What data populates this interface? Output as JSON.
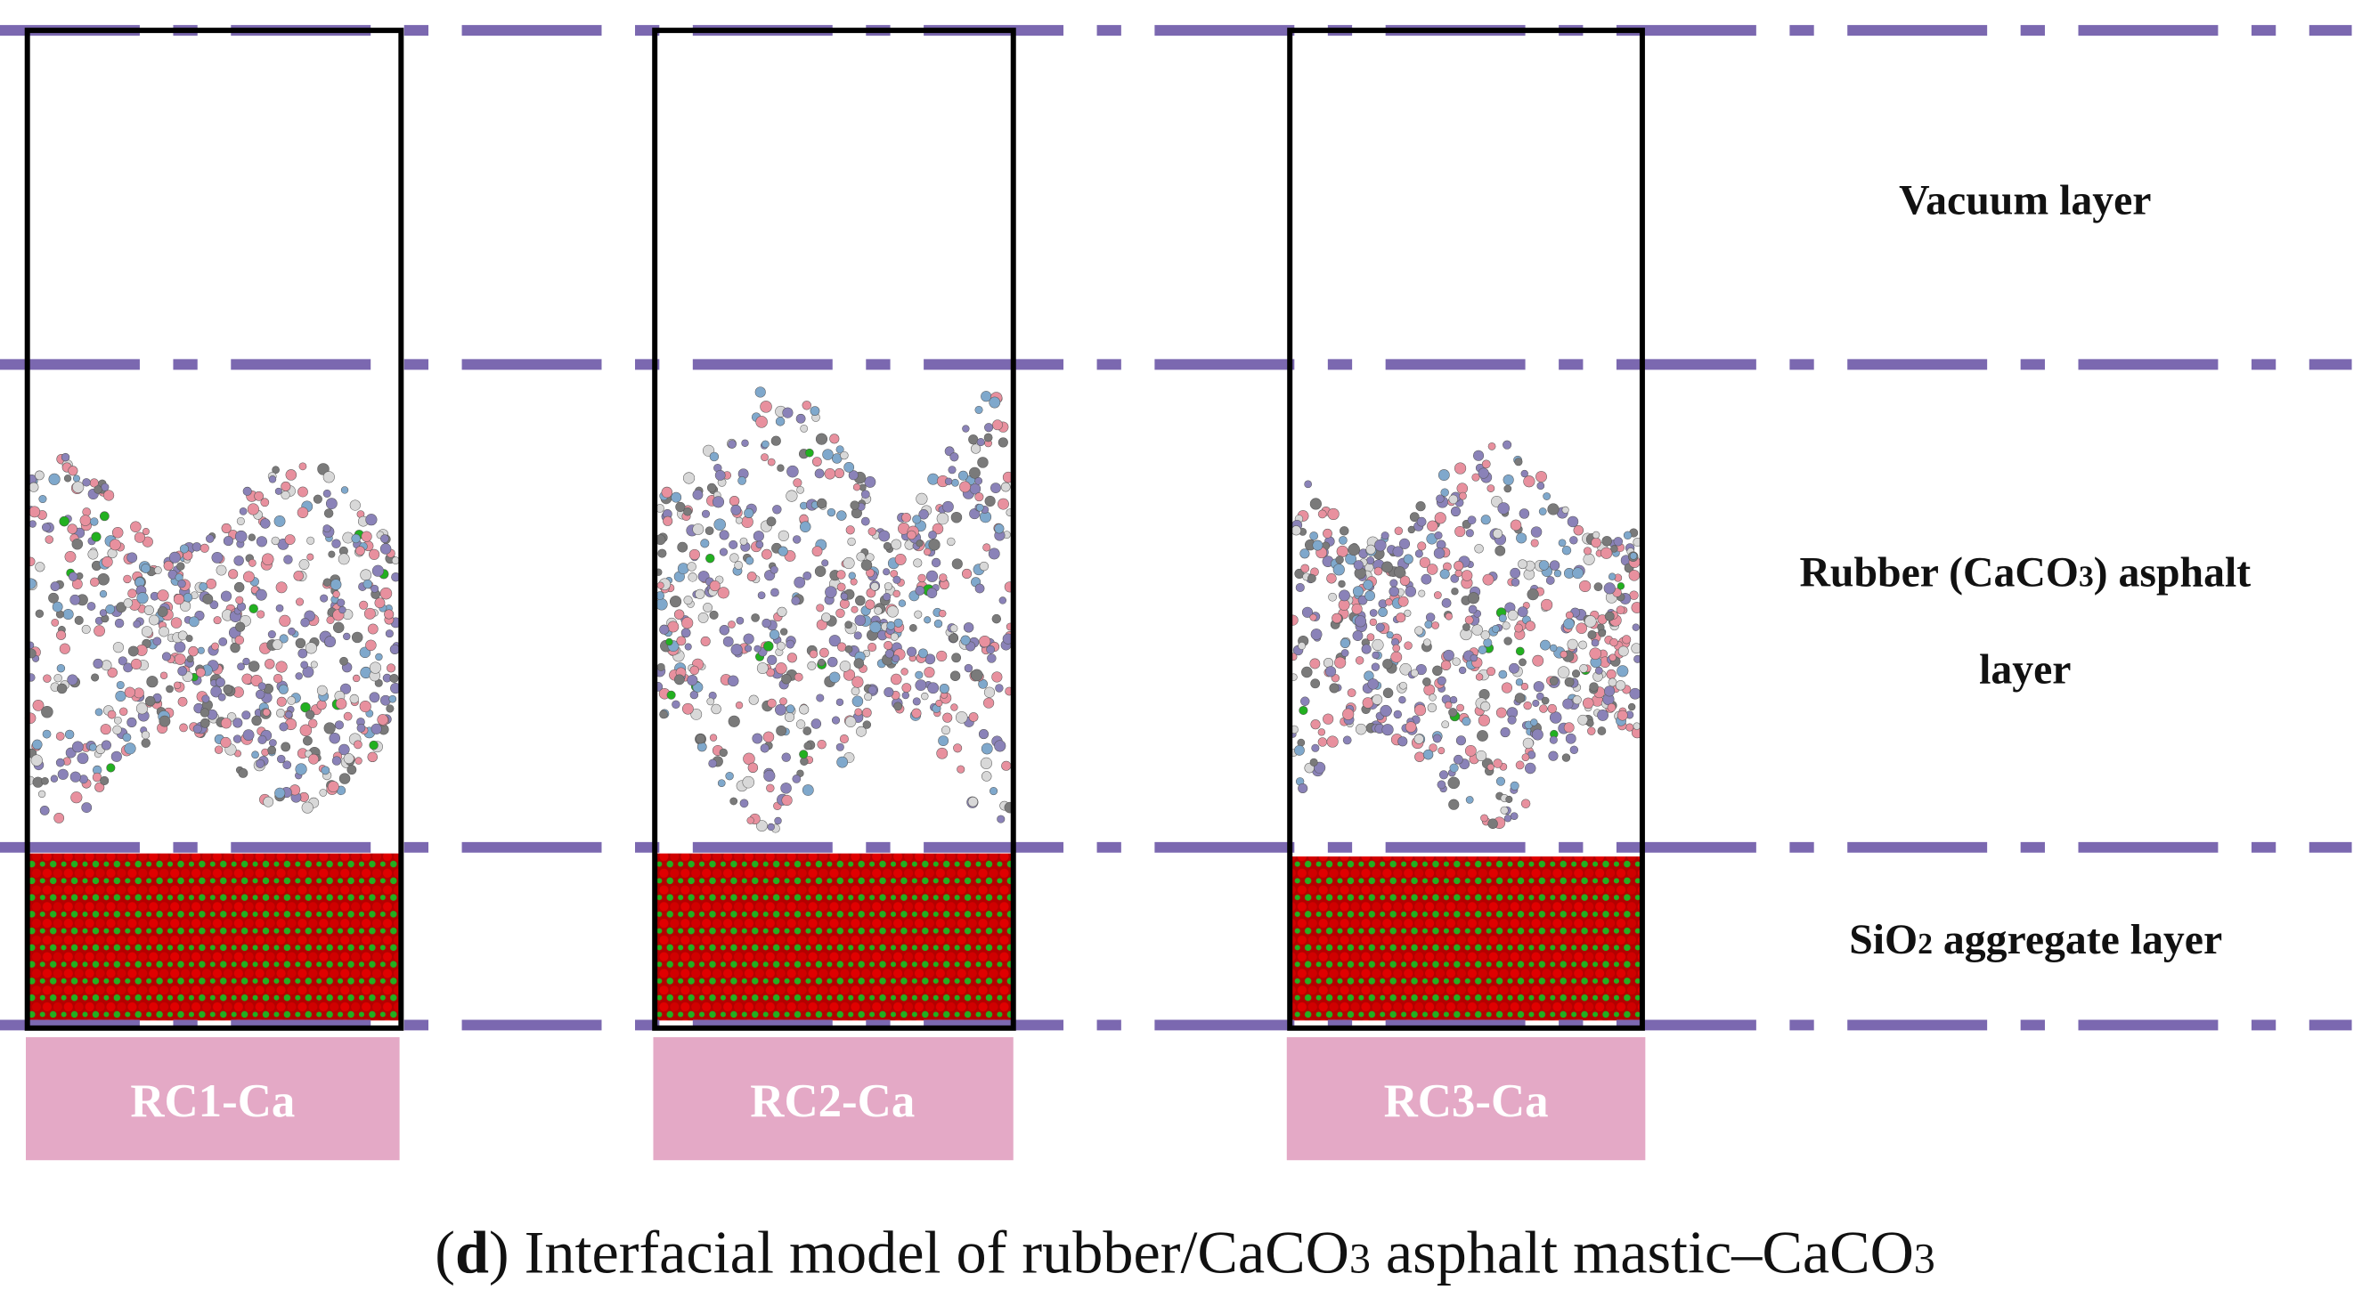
{
  "models": [
    "RC1-Ca",
    "RC2-Ca",
    "RC3-Ca"
  ],
  "layers": {
    "vacuum": "Vacuum layer",
    "asphalt": [
      "Rubber (CaCO",
      "3",
      ") asphalt",
      "layer"
    ],
    "aggregate": [
      "SiO",
      "2",
      " aggregate layer"
    ]
  },
  "caption": [
    "(",
    "d",
    ") Interfacial model of rubber/CaCO",
    "3",
    " asphalt mastic–CaCO",
    "3"
  ]
}
